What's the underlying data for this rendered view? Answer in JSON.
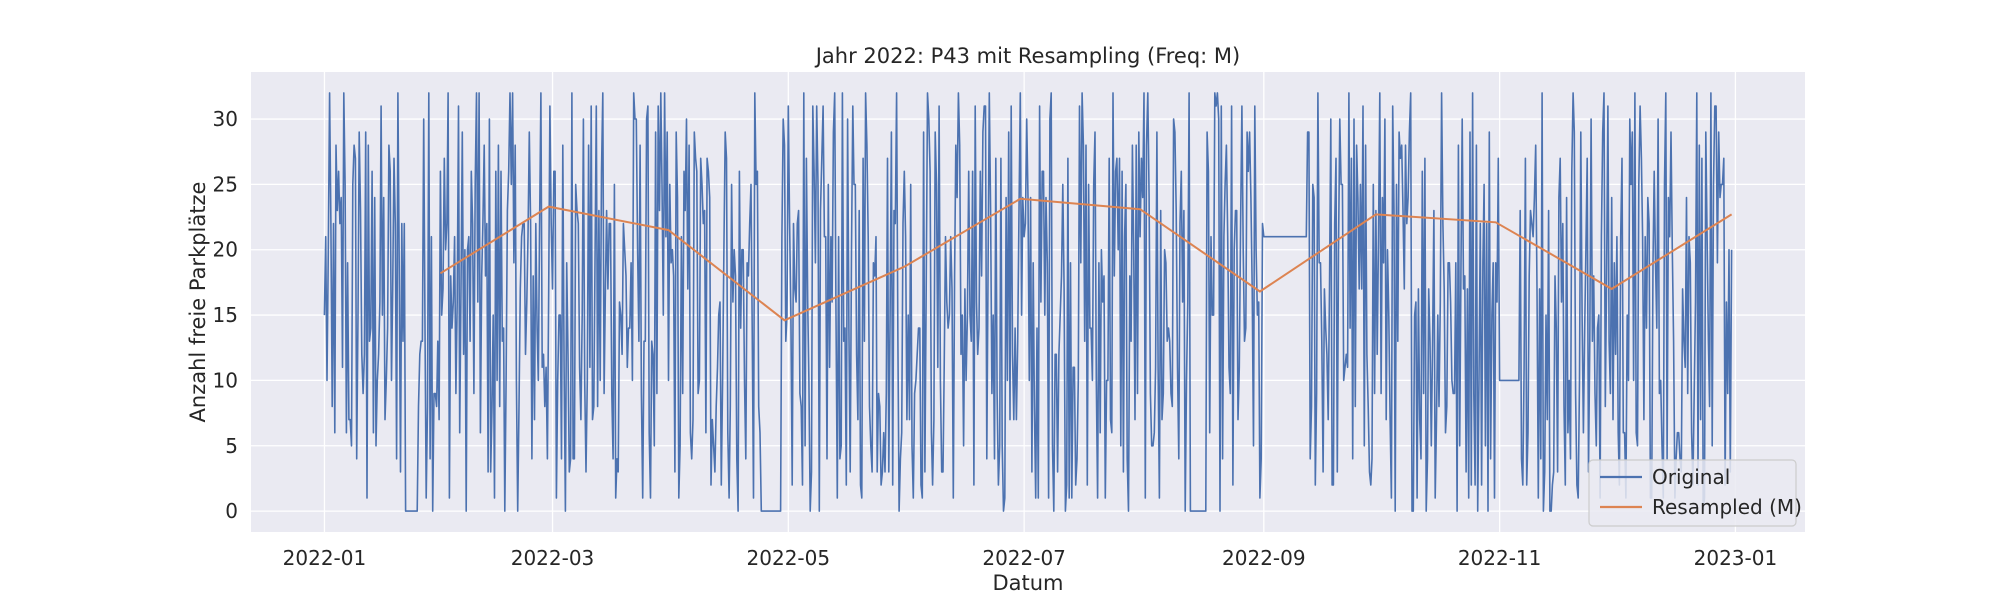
{
  "chart_data": {
    "type": "line",
    "title": "Jahr 2022: P43 mit Resampling (Freq: M)",
    "xlabel": "Datum",
    "ylabel": "Anzahl freie Parkplätze",
    "x_type": "date",
    "xlim": [
      "2021-12-13",
      "2023-01-19"
    ],
    "ylim": [
      -1.6,
      33.6
    ],
    "x_ticks": [
      "2022-01",
      "2022-03",
      "2022-05",
      "2022-07",
      "2022-09",
      "2022-11",
      "2023-01"
    ],
    "y_ticks": [
      0,
      5,
      10,
      15,
      20,
      25,
      30
    ],
    "grid": true,
    "legend_position": "lower-right",
    "background": "#eaeaf2",
    "series": [
      {
        "name": "Original",
        "color": "#4c72b0",
        "frequency": "high-frequency (dense oscillation between 0 and 32)",
        "points": [
          [
            "2022-01-01",
            15
          ],
          [
            "2022-01-03",
            8
          ],
          [
            "2022-01-05",
            22
          ],
          [
            "2022-01-06",
            32
          ],
          [
            "2022-01-08",
            5
          ],
          [
            "2022-01-10",
            29
          ],
          [
            "2022-01-12",
            1
          ],
          [
            "2022-01-14",
            24
          ],
          [
            "2022-01-17",
            10
          ],
          [
            "2022-01-20",
            32
          ],
          [
            "2022-01-22",
            0
          ],
          [
            "2022-01-25",
            0
          ],
          [
            "2022-01-28",
            32
          ],
          [
            "2022-01-30",
            8
          ],
          [
            "2022-02-02",
            32
          ],
          [
            "2022-02-06",
            12
          ],
          [
            "2022-02-10",
            32
          ],
          [
            "2022-02-14",
            1
          ],
          [
            "2022-02-18",
            32
          ],
          [
            "2022-02-22",
            12
          ],
          [
            "2022-02-26",
            32
          ],
          [
            "2022-03-02",
            1
          ],
          [
            "2022-03-06",
            32
          ],
          [
            "2022-03-10",
            10
          ],
          [
            "2022-03-14",
            32
          ],
          [
            "2022-03-18",
            3
          ],
          [
            "2022-03-22",
            32
          ],
          [
            "2022-03-26",
            6
          ],
          [
            "2022-03-30",
            32
          ],
          [
            "2022-04-03",
            5
          ],
          [
            "2022-04-07",
            27
          ],
          [
            "2022-04-11",
            2
          ],
          [
            "2022-04-15",
            27
          ],
          [
            "2022-04-18",
            0
          ],
          [
            "2022-04-21",
            22
          ],
          [
            "2022-04-24",
            0
          ],
          [
            "2022-04-29",
            0
          ],
          [
            "2022-04-30",
            28
          ],
          [
            "2022-05-02",
            2
          ],
          [
            "2022-05-05",
            32
          ],
          [
            "2022-05-09",
            0
          ],
          [
            "2022-05-13",
            32
          ],
          [
            "2022-05-17",
            3
          ],
          [
            "2022-05-21",
            32
          ],
          [
            "2022-05-25",
            2
          ],
          [
            "2022-05-29",
            32
          ],
          [
            "2022-06-02",
            5
          ],
          [
            "2022-06-06",
            32
          ],
          [
            "2022-06-10",
            3
          ],
          [
            "2022-06-14",
            32
          ],
          [
            "2022-06-18",
            2
          ],
          [
            "2022-06-22",
            32
          ],
          [
            "2022-06-26",
            1
          ],
          [
            "2022-06-30",
            32
          ],
          [
            "2022-07-04",
            1
          ],
          [
            "2022-07-08",
            32
          ],
          [
            "2022-07-12",
            2
          ],
          [
            "2022-07-16",
            32
          ],
          [
            "2022-07-20",
            1
          ],
          [
            "2022-07-24",
            32
          ],
          [
            "2022-07-28",
            0
          ],
          [
            "2022-08-01",
            32
          ],
          [
            "2022-08-05",
            1
          ],
          [
            "2022-08-09",
            29
          ],
          [
            "2022-08-13",
            0
          ],
          [
            "2022-08-17",
            0
          ],
          [
            "2022-08-20",
            32
          ],
          [
            "2022-08-24",
            2
          ],
          [
            "2022-08-28",
            26
          ],
          [
            "2022-08-31",
            1
          ],
          [
            "2022-09-01",
            21
          ],
          [
            "2022-09-12",
            21
          ],
          [
            "2022-09-13",
            4
          ],
          [
            "2022-09-15",
            32
          ],
          [
            "2022-09-19",
            2
          ],
          [
            "2022-09-23",
            32
          ],
          [
            "2022-09-27",
            5
          ],
          [
            "2022-10-01",
            32
          ],
          [
            "2022-10-05",
            0
          ],
          [
            "2022-10-09",
            32
          ],
          [
            "2022-10-13",
            0
          ],
          [
            "2022-10-17",
            32
          ],
          [
            "2022-10-21",
            0
          ],
          [
            "2022-10-25",
            32
          ],
          [
            "2022-10-29",
            0
          ],
          [
            "2022-11-01",
            10
          ],
          [
            "2022-11-06",
            10
          ],
          [
            "2022-11-08",
            2
          ],
          [
            "2022-11-12",
            32
          ],
          [
            "2022-11-16",
            3
          ],
          [
            "2022-11-20",
            32
          ],
          [
            "2022-11-24",
            3
          ],
          [
            "2022-11-28",
            32
          ],
          [
            "2022-12-02",
            2
          ],
          [
            "2022-12-06",
            32
          ],
          [
            "2022-12-10",
            1
          ],
          [
            "2022-12-14",
            32
          ],
          [
            "2022-12-18",
            3
          ],
          [
            "2022-12-22",
            32
          ],
          [
            "2022-12-26",
            5
          ],
          [
            "2022-12-29",
            27
          ],
          [
            "2022-12-31",
            20
          ]
        ]
      },
      {
        "name": "Resampled (M)",
        "color": "#dd8452",
        "points": [
          [
            "2022-01-31",
            18.2
          ],
          [
            "2022-02-28",
            23.3
          ],
          [
            "2022-03-31",
            21.5
          ],
          [
            "2022-04-30",
            14.6
          ],
          [
            "2022-05-31",
            18.7
          ],
          [
            "2022-06-30",
            23.9
          ],
          [
            "2022-07-31",
            23.1
          ],
          [
            "2022-08-31",
            16.8
          ],
          [
            "2022-09-30",
            22.7
          ],
          [
            "2022-10-31",
            22.1
          ],
          [
            "2022-11-30",
            17.0
          ],
          [
            "2022-12-31",
            22.7
          ]
        ]
      }
    ]
  }
}
